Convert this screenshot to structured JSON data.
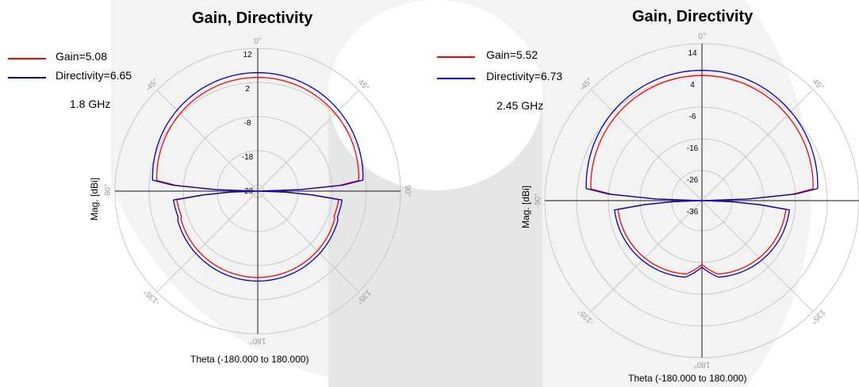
{
  "colors": {
    "gain": "#ff0000",
    "directivity": "#0000c0",
    "grid": "#c8c8c8",
    "axis": "#404040",
    "angle_label": "#9a9a9a",
    "watermark": "#ececec"
  },
  "chart_data": [
    {
      "type": "polar",
      "title": "Gain, Directivity",
      "xlabel": "Theta (-180.000 to 180.000)",
      "ylabel": "Mag. [dBi]",
      "annotation": "1.8 GHz",
      "angle_labels": [
        "0°",
        "45°",
        "90°",
        "135°",
        "180°",
        "-135°",
        "-90°",
        "-45°"
      ],
      "radial_ticks": [
        12,
        2,
        -8,
        -18,
        -28
      ],
      "rlim": [
        -38,
        12
      ],
      "legend_position": "top-left",
      "series": [
        {
          "name": "Gain=5.08",
          "color": "#ff0000",
          "peak": 5.08
        },
        {
          "name": "Directivity=6.65",
          "color": "#0000c0",
          "peak": 6.65
        }
      ]
    },
    {
      "type": "polar",
      "title": "Gain, Directivity",
      "xlabel": "Theta (-180.000 to 180.000)",
      "ylabel": "Mag. [dBi]",
      "annotation": "2.45 GHz",
      "angle_labels": [
        "0°",
        "45°",
        "90°",
        "135°",
        "180°",
        "-135°",
        "-90°",
        "-45°"
      ],
      "radial_ticks": [
        14,
        4,
        -6,
        -16,
        -26,
        -36
      ],
      "rlim": [
        -46,
        14
      ],
      "legend_position": "top-left",
      "series": [
        {
          "name": "Gain=5.52",
          "color": "#ff0000",
          "peak": 5.52
        },
        {
          "name": "Directivity=6.73",
          "color": "#0000c0",
          "peak": 6.73
        }
      ]
    }
  ]
}
